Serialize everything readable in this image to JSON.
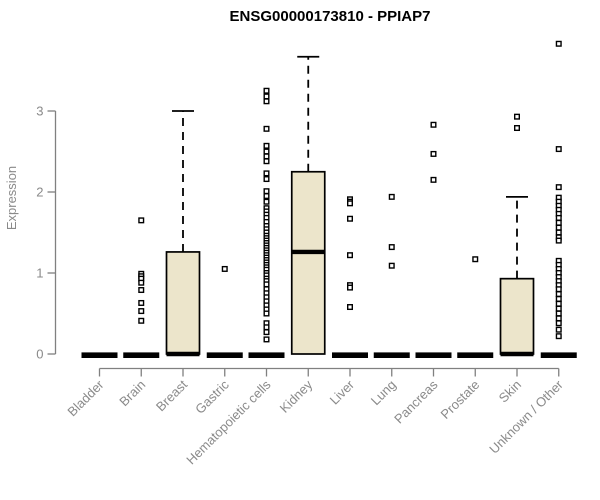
{
  "chart_data": {
    "type": "boxplot",
    "title": "ENSG00000173810 - PPIAP7",
    "ylabel": "Expression",
    "xlabel": "",
    "yticks": [
      0,
      1,
      2,
      3
    ],
    "ylim": [
      0,
      3.9
    ],
    "grid": false,
    "legend": false,
    "colors": {
      "box_fill": "#ECE5CB",
      "box_stroke": "#000000",
      "median": "#000000",
      "outlier_stroke": "#000000",
      "outlier_fill": "#ffffff",
      "axis": "#808080",
      "tick_label": "#8a8a8a",
      "title": "#000000"
    },
    "categories": [
      "Bladder",
      "Brain",
      "Breast",
      "Gastric",
      "Hematopoietic cells",
      "Kidney",
      "Liver",
      "Lung",
      "Pancreas",
      "Prostate",
      "Skin",
      "Unknown / Other"
    ],
    "boxes": [
      {
        "category": "Bladder",
        "q1": 0,
        "median": 0,
        "q3": 0,
        "whisker_low": 0,
        "whisker_high": 0,
        "outliers": []
      },
      {
        "category": "Brain",
        "q1": 0,
        "median": 0,
        "q3": 0,
        "whisker_low": 0,
        "whisker_high": 0,
        "outliers": [
          1.65,
          0.99,
          0.96,
          0.93,
          0.88,
          0.79,
          0.63,
          0.53,
          0.41
        ]
      },
      {
        "category": "Breast",
        "q1": 0,
        "median": 0,
        "q3": 1.26,
        "whisker_low": 0,
        "whisker_high": 3.0,
        "outliers": []
      },
      {
        "category": "Gastric",
        "q1": 0,
        "median": 0,
        "q3": 0,
        "whisker_low": 0,
        "whisker_high": 0,
        "outliers": [
          1.05
        ]
      },
      {
        "category": "Hematopoietic cells",
        "q1": 0,
        "median": 0,
        "q3": 0,
        "whisker_low": 0,
        "whisker_high": 0,
        "outliers": [
          3.25,
          3.18,
          3.12,
          2.78,
          2.57,
          2.5,
          2.44,
          2.38,
          2.23,
          2.16,
          2.01,
          1.95,
          1.88,
          1.8,
          1.76,
          1.72,
          1.68,
          1.63,
          1.58,
          1.54,
          1.5,
          1.46,
          1.43,
          1.4,
          1.37,
          1.34,
          1.31,
          1.28,
          1.25,
          1.22,
          1.19,
          1.16,
          1.13,
          1.1,
          1.07,
          1.04,
          1.0,
          0.97,
          0.93,
          0.9,
          0.86,
          0.8,
          0.75,
          0.7,
          0.65,
          0.6,
          0.55,
          0.5,
          0.38,
          0.33,
          0.27,
          0.18
        ]
      },
      {
        "category": "Kidney",
        "q1": 0,
        "median": 1.26,
        "q3": 2.25,
        "whisker_low": 0,
        "whisker_high": 3.67,
        "outliers": []
      },
      {
        "category": "Liver",
        "q1": 0,
        "median": 0,
        "q3": 0,
        "whisker_low": 0,
        "whisker_high": 0,
        "outliers": [
          1.91,
          1.88,
          1.86,
          1.67,
          1.22,
          0.85,
          0.82,
          0.58
        ]
      },
      {
        "category": "Lung",
        "q1": 0,
        "median": 0,
        "q3": 0,
        "whisker_low": 0,
        "whisker_high": 0,
        "outliers": [
          1.94,
          1.32,
          1.09
        ]
      },
      {
        "category": "Pancreas",
        "q1": 0,
        "median": 0,
        "q3": 0,
        "whisker_low": 0,
        "whisker_high": 0,
        "outliers": [
          2.83,
          2.47,
          2.15
        ]
      },
      {
        "category": "Prostate",
        "q1": 0,
        "median": 0,
        "q3": 0,
        "whisker_low": 0,
        "whisker_high": 0,
        "outliers": [
          1.17
        ]
      },
      {
        "category": "Skin",
        "q1": 0,
        "median": 0,
        "q3": 0.93,
        "whisker_low": 0,
        "whisker_high": 1.94,
        "outliers": [
          2.93,
          2.79
        ]
      },
      {
        "category": "Unknown / Other",
        "q1": 0,
        "median": 0,
        "q3": 0,
        "whisker_low": 0,
        "whisker_high": 0,
        "outliers": [
          3.83,
          2.53,
          2.06,
          1.93,
          1.88,
          1.83,
          1.78,
          1.73,
          1.68,
          1.62,
          1.56,
          1.5,
          1.44,
          1.4,
          1.15,
          1.1,
          1.05,
          1.0,
          0.95,
          0.9,
          0.85,
          0.8,
          0.74,
          0.68,
          0.62,
          0.56,
          0.5,
          0.44,
          0.38,
          0.3,
          0.22
        ]
      }
    ]
  }
}
